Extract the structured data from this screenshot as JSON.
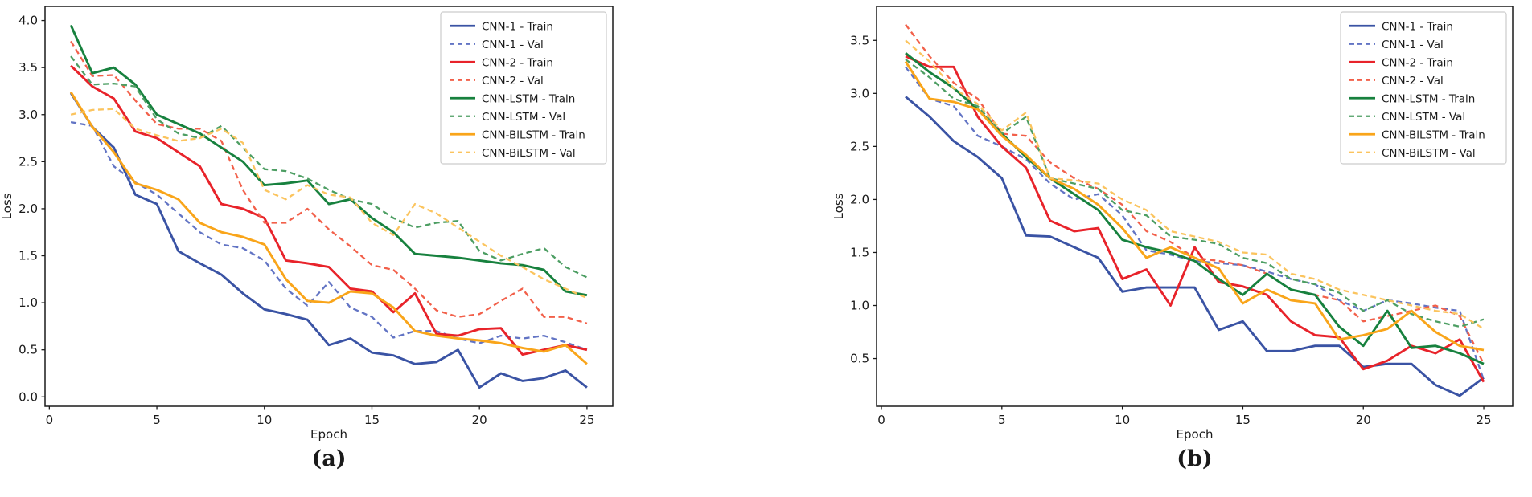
{
  "figure": {
    "captions": {
      "a": "(a)",
      "b": "(b)"
    }
  },
  "colors": {
    "cnn1_train": "#3a53a4",
    "cnn1_val": "#6274c4",
    "cnn2_train": "#e8232a",
    "cnn2_val": "#f2604a",
    "cnnlstm_train": "#17813e",
    "cnnlstm_val": "#4d9e63",
    "cnnbilstm_train": "#f9a51a",
    "cnnbilstm_val": "#fbc45e",
    "axis": "#1a1a1a",
    "legend_border": "#cccccc"
  },
  "chart_data": [
    {
      "type": "line",
      "panel": "a",
      "title": "",
      "xlabel": "Epoch",
      "ylabel": "Loss",
      "x": [
        1,
        2,
        3,
        4,
        5,
        6,
        7,
        8,
        9,
        10,
        11,
        12,
        13,
        14,
        15,
        16,
        17,
        18,
        19,
        20,
        21,
        22,
        23,
        24,
        25
      ],
      "xlim": [
        -0.2,
        26.2
      ],
      "ylim": [
        -0.1,
        4.15
      ],
      "xticks": [
        0,
        5,
        10,
        15,
        20,
        25
      ],
      "yticks": [
        0.0,
        0.5,
        1.0,
        1.5,
        2.0,
        2.5,
        3.0,
        3.5,
        4.0
      ],
      "grid": false,
      "legend_position": "upper right",
      "series": [
        {
          "name": "CNN-1 - Train",
          "color": "cnn1_train",
          "dash": false,
          "values": [
            3.23,
            2.87,
            2.65,
            2.15,
            2.05,
            1.55,
            1.42,
            1.3,
            1.1,
            0.93,
            0.88,
            0.82,
            0.55,
            0.62,
            0.47,
            0.44,
            0.35,
            0.37,
            0.5,
            0.1,
            0.25,
            0.17,
            0.2,
            0.28,
            0.1
          ]
        },
        {
          "name": "CNN-1 - Val",
          "color": "cnn1_val",
          "dash": true,
          "values": [
            2.92,
            2.88,
            2.45,
            2.28,
            2.15,
            1.95,
            1.75,
            1.62,
            1.58,
            1.45,
            1.15,
            0.97,
            1.22,
            0.95,
            0.85,
            0.63,
            0.7,
            0.7,
            0.62,
            0.57,
            0.65,
            0.62,
            0.65,
            0.58,
            0.5
          ]
        },
        {
          "name": "CNN-2 - Train",
          "color": "cnn2_train",
          "dash": false,
          "values": [
            3.52,
            3.3,
            3.17,
            2.82,
            2.75,
            2.6,
            2.45,
            2.05,
            2.0,
            1.9,
            1.45,
            1.42,
            1.38,
            1.15,
            1.12,
            0.9,
            1.1,
            0.67,
            0.65,
            0.72,
            0.73,
            0.45,
            0.5,
            0.55,
            0.5
          ]
        },
        {
          "name": "CNN-2 - Val",
          "color": "cnn2_val",
          "dash": true,
          "values": [
            3.78,
            3.41,
            3.42,
            3.15,
            2.9,
            2.85,
            2.85,
            2.72,
            2.2,
            1.85,
            1.85,
            2.0,
            1.78,
            1.6,
            1.4,
            1.35,
            1.15,
            0.92,
            0.85,
            0.88,
            1.02,
            1.15,
            0.85,
            0.85,
            0.78
          ]
        },
        {
          "name": "CNN-LSTM - Train",
          "color": "cnnlstm_train",
          "dash": false,
          "values": [
            3.95,
            3.44,
            3.5,
            3.32,
            3.0,
            2.9,
            2.8,
            2.65,
            2.5,
            2.25,
            2.27,
            2.3,
            2.05,
            2.1,
            1.9,
            1.75,
            1.52,
            1.5,
            1.48,
            1.45,
            1.42,
            1.4,
            1.35,
            1.12,
            1.08
          ]
        },
        {
          "name": "CNN-LSTM - Val",
          "color": "cnnlstm_val",
          "dash": true,
          "values": [
            3.62,
            3.32,
            3.33,
            3.3,
            2.95,
            2.8,
            2.75,
            2.88,
            2.65,
            2.42,
            2.4,
            2.32,
            2.2,
            2.1,
            2.05,
            1.9,
            1.8,
            1.85,
            1.87,
            1.55,
            1.45,
            1.52,
            1.58,
            1.38,
            1.27
          ]
        },
        {
          "name": "CNN-BiLSTM - Train",
          "color": "cnnbilstm_train",
          "dash": false,
          "values": [
            3.24,
            2.87,
            2.6,
            2.27,
            2.2,
            2.1,
            1.85,
            1.75,
            1.7,
            1.62,
            1.25,
            1.02,
            1.0,
            1.12,
            1.1,
            0.95,
            0.7,
            0.65,
            0.62,
            0.6,
            0.57,
            0.52,
            0.48,
            0.55,
            0.35
          ]
        },
        {
          "name": "CNN-BiLSTM - Val",
          "color": "cnnbilstm_val",
          "dash": true,
          "values": [
            3.0,
            3.05,
            3.06,
            2.85,
            2.78,
            2.72,
            2.75,
            2.85,
            2.7,
            2.2,
            2.1,
            2.25,
            2.15,
            2.12,
            1.85,
            1.72,
            2.05,
            1.95,
            1.8,
            1.65,
            1.5,
            1.38,
            1.25,
            1.15,
            1.05
          ]
        }
      ]
    },
    {
      "type": "line",
      "panel": "b",
      "title": "",
      "xlabel": "Epoch",
      "ylabel": "Loss",
      "x": [
        1,
        2,
        3,
        4,
        5,
        6,
        7,
        8,
        9,
        10,
        11,
        12,
        13,
        14,
        15,
        16,
        17,
        18,
        19,
        20,
        21,
        22,
        23,
        24,
        25
      ],
      "xlim": [
        -0.2,
        26.2
      ],
      "ylim": [
        0.05,
        3.82
      ],
      "xticks": [
        0,
        5,
        10,
        15,
        20,
        25
      ],
      "yticks": [
        0.5,
        1.0,
        1.5,
        2.0,
        2.5,
        3.0,
        3.5
      ],
      "grid": false,
      "legend_position": "upper right",
      "series": [
        {
          "name": "CNN-1 - Train",
          "color": "cnn1_train",
          "dash": false,
          "values": [
            2.97,
            2.78,
            2.55,
            2.4,
            2.2,
            1.66,
            1.65,
            1.55,
            1.45,
            1.13,
            1.17,
            1.17,
            1.17,
            0.77,
            0.85,
            0.57,
            0.57,
            0.62,
            0.62,
            0.42,
            0.45,
            0.45,
            0.25,
            0.15,
            0.32
          ]
        },
        {
          "name": "CNN-1 - Val",
          "color": "cnn1_val",
          "dash": true,
          "values": [
            3.25,
            2.95,
            2.88,
            2.6,
            2.5,
            2.38,
            2.15,
            2.0,
            2.05,
            1.85,
            1.52,
            1.48,
            1.42,
            1.4,
            1.38,
            1.32,
            1.25,
            1.2,
            1.05,
            0.95,
            1.05,
            1.02,
            0.98,
            0.95,
            0.3
          ]
        },
        {
          "name": "CNN-2 - Train",
          "color": "cnn2_train",
          "dash": false,
          "values": [
            3.35,
            3.25,
            3.25,
            2.78,
            2.5,
            2.3,
            1.8,
            1.7,
            1.73,
            1.25,
            1.34,
            1.0,
            1.55,
            1.22,
            1.18,
            1.1,
            0.85,
            0.72,
            0.7,
            0.4,
            0.48,
            0.62,
            0.55,
            0.68,
            0.28
          ]
        },
        {
          "name": "CNN-2 - Val",
          "color": "cnn2_val",
          "dash": true,
          "values": [
            3.65,
            3.35,
            3.1,
            2.95,
            2.62,
            2.6,
            2.35,
            2.2,
            2.1,
            1.95,
            1.7,
            1.6,
            1.45,
            1.42,
            1.38,
            1.3,
            1.15,
            1.1,
            1.05,
            0.85,
            0.9,
            0.95,
            1.0,
            0.9,
            0.45
          ]
        },
        {
          "name": "CNN-LSTM - Train",
          "color": "cnnlstm_train",
          "dash": false,
          "values": [
            3.38,
            3.2,
            3.05,
            2.85,
            2.62,
            2.4,
            2.2,
            2.05,
            1.9,
            1.62,
            1.55,
            1.5,
            1.42,
            1.25,
            1.1,
            1.3,
            1.15,
            1.1,
            0.8,
            0.62,
            0.95,
            0.6,
            0.62,
            0.55,
            0.45
          ]
        },
        {
          "name": "CNN-LSTM - Val",
          "color": "cnnlstm_val",
          "dash": true,
          "values": [
            3.32,
            3.15,
            2.95,
            2.88,
            2.62,
            2.78,
            2.2,
            2.15,
            2.1,
            1.9,
            1.85,
            1.65,
            1.62,
            1.58,
            1.45,
            1.4,
            1.25,
            1.2,
            1.12,
            0.95,
            1.05,
            0.92,
            0.85,
            0.8,
            0.87
          ]
        },
        {
          "name": "CNN-BiLSTM - Train",
          "color": "cnnbilstm_train",
          "dash": false,
          "values": [
            3.3,
            2.95,
            2.92,
            2.85,
            2.6,
            2.42,
            2.2,
            2.1,
            1.95,
            1.73,
            1.45,
            1.55,
            1.45,
            1.35,
            1.02,
            1.15,
            1.05,
            1.02,
            0.68,
            0.72,
            0.78,
            0.95,
            0.75,
            0.62,
            0.58
          ]
        },
        {
          "name": "CNN-BiLSTM - Val",
          "color": "cnnbilstm_val",
          "dash": true,
          "values": [
            3.5,
            3.3,
            3.05,
            2.9,
            2.65,
            2.82,
            2.2,
            2.18,
            2.15,
            2.0,
            1.9,
            1.7,
            1.65,
            1.6,
            1.5,
            1.48,
            1.3,
            1.25,
            1.15,
            1.1,
            1.05,
            1.0,
            0.95,
            0.92,
            0.78
          ]
        }
      ]
    }
  ]
}
